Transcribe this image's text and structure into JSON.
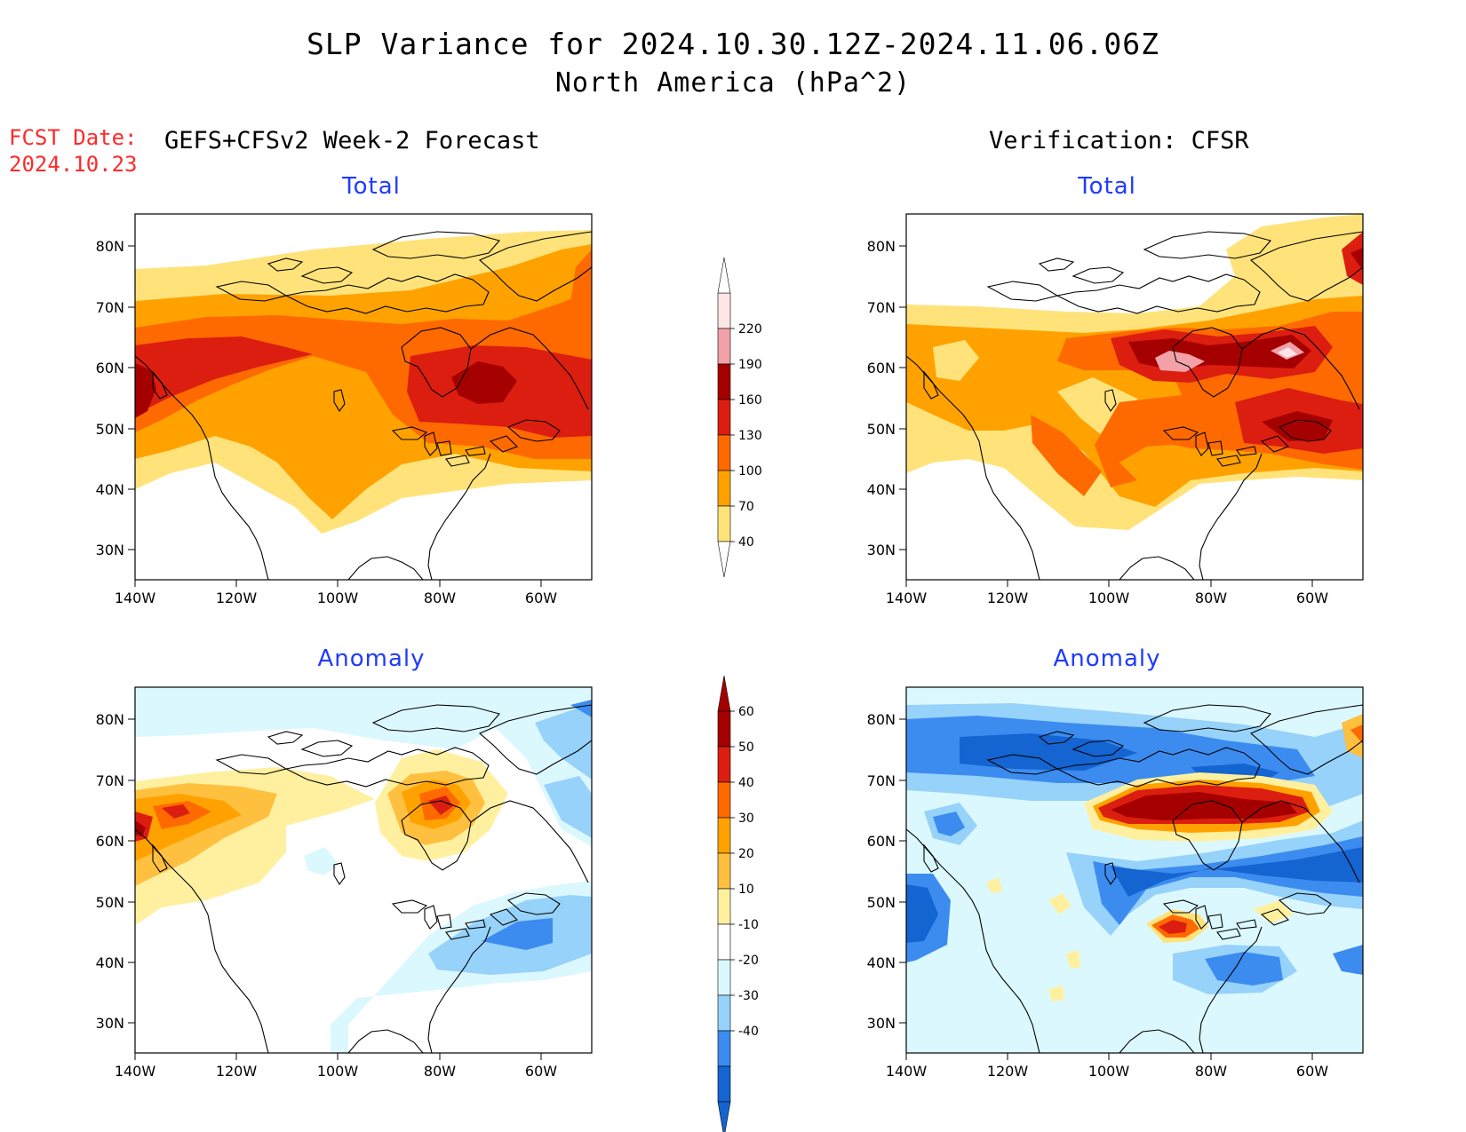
{
  "header": {
    "title": "SLP Variance for 2024.10.30.12Z-2024.11.06.06Z",
    "subtitle": "North America (hPa^2)",
    "fcst_date_label": "FCST Date:",
    "fcst_date_value": "2024.10.23",
    "forecast_label": "GEFS+CFSv2 Week-2 Forecast",
    "verification_label": "Verification: CFSR"
  },
  "panels": {
    "top_left_title": "Total",
    "top_right_title": "Total",
    "bottom_left_title": "Anomaly",
    "bottom_right_title": "Anomaly"
  },
  "axes": {
    "lat_ticks": [
      "80N",
      "70N",
      "60N",
      "50N",
      "40N",
      "30N"
    ],
    "lon_ticks": [
      "140W",
      "120W",
      "100W",
      "80W",
      "60W"
    ]
  },
  "colorbar_total": {
    "labels": [
      "220",
      "190",
      "160",
      "130",
      "100",
      "70",
      "40"
    ],
    "colors": [
      "#ffe6e6",
      "#f2a1a8",
      "#a50000",
      "#dc1e10",
      "#ff6a00",
      "#ffa200",
      "#ffe37a"
    ]
  },
  "colorbar_anomaly": {
    "labels": [
      "60",
      "50",
      "40",
      "30",
      "20",
      "10",
      "-10",
      "-20",
      "-30",
      "-40"
    ],
    "colors": [
      "#a50000",
      "#dc1e10",
      "#ff6a00",
      "#ffa200",
      "#ffc040",
      "#fff0a0",
      "#ffffff",
      "#dcf8ff",
      "#96d2fa",
      "#3c8cf0",
      "#1464d2"
    ]
  },
  "colors": {
    "title_blue": "#1f3bff",
    "fcst_red": "#ff2a2a"
  }
}
